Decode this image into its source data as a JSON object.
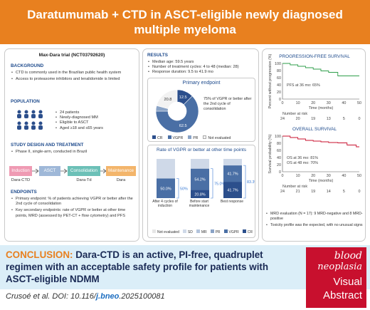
{
  "header": {
    "title_line1": "Daratumumab + CTD in ASCT-eligible newly diagnosed",
    "title_line2": "multiple myeloma",
    "bg_color": "#e8801f"
  },
  "trial": {
    "title": "Max-Dara trial (NCT03792620)",
    "background_heading": "BACKGROUND",
    "background_items": [
      "CTD is commonly used in the Brazilian public health system",
      "Access to proteasome inhibitors and lenalidomide is limited"
    ],
    "population_heading": "POPULATION",
    "population_items": [
      "24 patients",
      "Newly-diagnosed MM",
      "Eligible to ASCT",
      "Aged ≥18 and ≤65 years"
    ],
    "design_heading": "STUDY DESIGN AND TREATMENT",
    "design_items": [
      "Phase II, single-arm, conducted in Brazil"
    ],
    "flow": [
      {
        "label": "Induction",
        "sub": "Dara-CTD",
        "color": "#ef9ab3"
      },
      {
        "label": "ASCT",
        "sub": "",
        "color": "#9fb8d8"
      },
      {
        "label": "Consolidation",
        "sub": "Dara-Td",
        "color": "#6cc0b7"
      },
      {
        "label": "Maintenance",
        "sub": "Dara",
        "color": "#f3b56b"
      }
    ],
    "endpoints_heading": "ENDPOINTS",
    "endpoints_items": [
      "Primary endpoint: % of patients achieving VGPR or better after the 2nd cycle of consolidation",
      "Key secondary endpoints: rate of VGPR or better at other time points, MRD (assessed by PET-CT + flow cytometry) and PFS"
    ]
  },
  "results": {
    "heading": "RESULTS",
    "items": [
      "Median age: 59.5 years",
      "Number of treatment cycles: 4 to 48 (median: 28)",
      "Response duration: 9.5 to 41.9 mo"
    ],
    "primary_title": "Primary endpoint",
    "primary_note": "75% of VGPR or better after the 2nd cycle of consolidation",
    "donut_legend": [
      "CR",
      "VGPR",
      "PR",
      "Not evaluated"
    ],
    "other_title": "Rate of VGPR or better at other time points",
    "bar_groups": [
      "After 4 cycles of induction",
      "Before start maintenance",
      "Best response"
    ],
    "bar_legend": [
      "Not evaluated",
      "SD",
      "MR",
      "PR",
      "VGPR",
      "CR"
    ],
    "bracket_labels": [
      "50%",
      "75.0%",
      "83.3%"
    ]
  },
  "chart_data": [
    {
      "type": "pie",
      "title": "Primary endpoint",
      "categories": [
        "CR",
        "VGPR",
        "PR",
        "Not evaluated"
      ],
      "values": [
        12.5,
        62.5,
        4.2,
        20.8
      ],
      "colors": [
        "#2c4f8c",
        "#4a6fa5",
        "#8aa3c6",
        "#f2f2f2"
      ]
    },
    {
      "type": "bar",
      "title": "Rate of VGPR or better at other time points",
      "categories": [
        "After 4 cycles of induction",
        "Before start maintenance",
        "Best response"
      ],
      "series": [
        {
          "name": "VGPR",
          "values": [
            50.0,
            54.2,
            41.7
          ]
        },
        {
          "name": "CR",
          "values": [
            0,
            20.8,
            41.7
          ]
        }
      ],
      "stacked": true,
      "ylim": [
        0,
        100
      ]
    },
    {
      "type": "line",
      "title": "PROGRESSION-FREE SURVIVAL",
      "ylabel": "Percent without progression (%)",
      "xlabel": "Time (months)",
      "x": [
        0,
        5,
        10,
        15,
        20,
        25,
        30,
        36,
        40,
        45,
        50
      ],
      "values": [
        100,
        96,
        92,
        88,
        84,
        79,
        75,
        65,
        65,
        65,
        65
      ],
      "xticks": [
        "0",
        "10",
        "20",
        "30",
        "40",
        "50"
      ],
      "yticks": [
        "0",
        "20",
        "40",
        "60",
        "80",
        "100"
      ],
      "annotation": "PFS at 36 mo: 65%",
      "at_risk_label": "Number at risk",
      "at_risk": [
        "24",
        "20",
        "19",
        "13",
        "5",
        "0"
      ]
    },
    {
      "type": "line",
      "title": "OVERALL SURVIVAL",
      "ylabel": "Survival probability (%)",
      "xlabel": "Time (months)",
      "x": [
        0,
        5,
        10,
        15,
        20,
        25,
        30,
        36,
        42,
        48,
        50
      ],
      "values": [
        100,
        96,
        92,
        88,
        86,
        84,
        82,
        81,
        75,
        70,
        70
      ],
      "xticks": [
        "0",
        "10",
        "20",
        "30",
        "40",
        "50"
      ],
      "yticks": [
        "0",
        "20",
        "40",
        "60",
        "80",
        "100"
      ],
      "annotation": [
        "OS at 36 mo: 81%",
        "OS at 48 mo: 70%"
      ],
      "at_risk_label": "Number at risk",
      "at_risk": [
        "24",
        "21",
        "19",
        "14",
        "5",
        "0"
      ]
    }
  ],
  "survival": {
    "items": [
      "MRD evaluation (N = 17): 9 MRD-negative and 8 MRD-positive",
      "Toxicity profile was the expected, with no unusual signs"
    ]
  },
  "conclusion": {
    "lead": "CONCLUSION:",
    "body": "Dara-CTD is an active, PI-free, quadruplet regimen with an acceptable safety profile for patients with ASCT-eligible NDMM"
  },
  "citation": {
    "authors": "Crusoé et al. DOI: 10.116/",
    "journal": "j.bneo",
    "rest": ".2025100081"
  },
  "badge": {
    "line1": "blood",
    "line2": "neoplasia",
    "line3": "Visual",
    "line4": "Abstract",
    "color": "#c8102e"
  }
}
